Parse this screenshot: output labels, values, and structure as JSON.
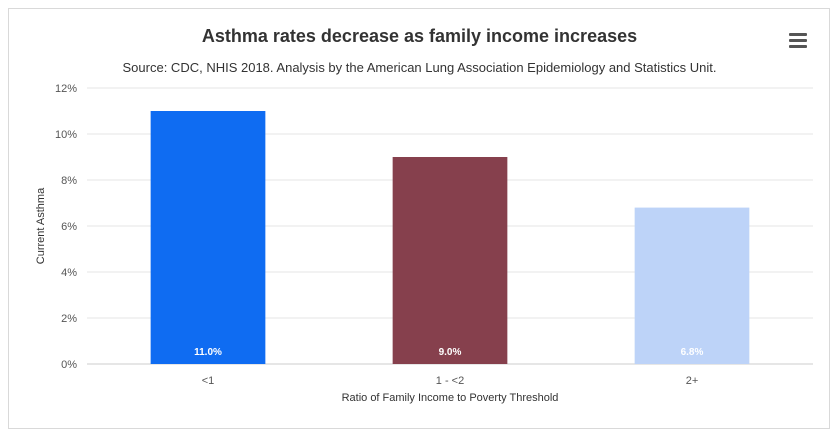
{
  "chart_data": {
    "type": "bar",
    "title": "Asthma rates decrease as family income increases",
    "subtitle": "Source: CDC, NHIS 2018. Analysis by the American Lung Association Epidemiology and Statistics Unit.",
    "xlabel": "Ratio of Family Income to Poverty Threshold",
    "ylabel": "Current Asthma",
    "categories": [
      "<1",
      "1 - <2",
      "2+"
    ],
    "values": [
      11.0,
      9.0,
      6.8
    ],
    "data_labels": [
      "11.0%",
      "9.0%",
      "6.8%"
    ],
    "colors": [
      "#0f6cf2",
      "#86404d",
      "#bdd3f8"
    ],
    "ylim": [
      0,
      12
    ],
    "yticks": [
      0,
      2,
      4,
      6,
      8,
      10,
      12
    ],
    "ytick_labels": [
      "0%",
      "2%",
      "4%",
      "6%",
      "8%",
      "10%",
      "12%"
    ],
    "grid": true,
    "legend": "none"
  },
  "menu": {
    "icon": "hamburger-menu-icon"
  }
}
